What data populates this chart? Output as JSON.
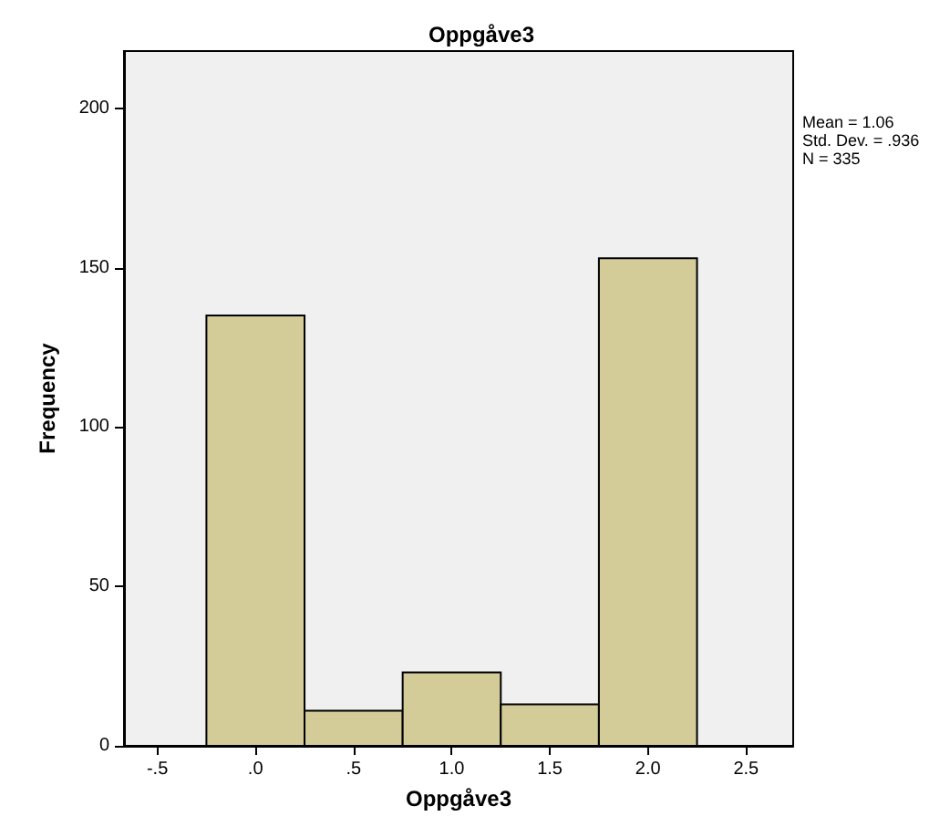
{
  "chart_data": {
    "type": "histogram",
    "title": "Oppgåve3",
    "xlabel": "Oppgåve3",
    "ylabel": "Frequency",
    "bins": [
      -0.25,
      0.25,
      0.75,
      1.25,
      1.75,
      2.25
    ],
    "values": [
      135,
      11,
      23,
      13,
      153
    ],
    "color": "#d3cc98",
    "xlim": [
      -0.67,
      2.74
    ],
    "ylim": [
      0,
      218
    ],
    "xticks": [
      {
        "value": -0.5,
        "label": "-.5"
      },
      {
        "value": 0,
        "label": ".0"
      },
      {
        "value": 0.5,
        "label": ".5"
      },
      {
        "value": 1,
        "label": "1.0"
      },
      {
        "value": 1.5,
        "label": "1.5"
      },
      {
        "value": 2,
        "label": "2.0"
      },
      {
        "value": 2.5,
        "label": "2.5"
      }
    ],
    "yticks": [
      0,
      50,
      100,
      150,
      200
    ],
    "grid": false,
    "annotations": [
      "Mean = 1.06",
      "Std. Dev. = .936",
      "N = 335"
    ]
  }
}
